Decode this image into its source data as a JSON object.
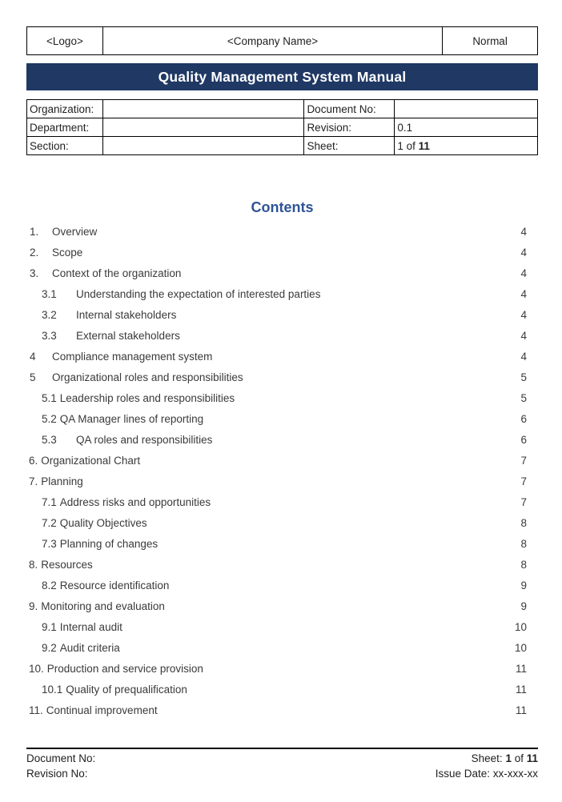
{
  "header": {
    "logo": "<Logo>",
    "company_name": "<Company Name>",
    "status": "Normal"
  },
  "title_banner": {
    "title": "Quality Management System Manual",
    "background_color": "#1f3864",
    "text_color": "#ffffff"
  },
  "info_table": {
    "organization_label": "Organization:",
    "organization_value": "",
    "document_no_label": "Document No:",
    "document_no_value": "",
    "department_label": "Department:",
    "department_value": "",
    "revision_label": "Revision:",
    "revision_value": "0.1",
    "section_label": "Section:",
    "section_value": "",
    "sheet_label": "Sheet:",
    "sheet_value_prefix": "1 of ",
    "sheet_value_total": "11"
  },
  "contents": {
    "heading": "Contents",
    "heading_color": "#2e5496",
    "items": [
      {
        "num": "1.",
        "label": "Overview",
        "page": "4",
        "style": "top-tab"
      },
      {
        "num": "2.",
        "label": "Scope",
        "page": "4",
        "style": "top-tab"
      },
      {
        "num": "3.",
        "label": "Context of the organization",
        "page": "4",
        "style": "top-tab"
      },
      {
        "num": "3.1",
        "label": "Understanding the expectation of interested parties",
        "page": "4",
        "style": "sub-tab"
      },
      {
        "num": "3.2",
        "label": "Internal stakeholders",
        "page": "4",
        "style": "sub-tab"
      },
      {
        "num": "3.3",
        "label": "External stakeholders",
        "page": "4",
        "style": "sub-tab"
      },
      {
        "num": "4",
        "label": "Compliance management system",
        "page": "4",
        "style": "top-tab"
      },
      {
        "num": "5",
        "label": "Organizational roles and responsibilities",
        "page": "5",
        "style": "top-tab"
      },
      {
        "num": "5.1",
        "label": "Leadership roles and responsibilities",
        "page": "5",
        "style": "sub-inline"
      },
      {
        "num": "5.2",
        "label": "QA Manager lines of reporting",
        "page": "6",
        "style": "sub-inline"
      },
      {
        "num": "5.3",
        "label": "QA roles and responsibilities",
        "page": "6",
        "style": "sub-tab"
      },
      {
        "num": "6.",
        "label": "Organizational Chart",
        "page": "7",
        "style": "top-inline"
      },
      {
        "num": "7.",
        "label": "Planning",
        "page": "7",
        "style": "top-inline"
      },
      {
        "num": "7.1",
        "label": "Address risks and opportunities",
        "page": "7",
        "style": "sub-inline"
      },
      {
        "num": "7.2",
        "label": "Quality Objectives",
        "page": "8",
        "style": "sub-inline"
      },
      {
        "num": "7.3",
        "label": "Planning of changes",
        "page": "8",
        "style": "sub-inline"
      },
      {
        "num": "8.",
        "label": "Resources",
        "page": "8",
        "style": "top-inline"
      },
      {
        "num": "8.2",
        "label": "Resource identification",
        "page": "9",
        "style": "sub-inline"
      },
      {
        "num": "9.",
        "label": "Monitoring and evaluation",
        "page": "9",
        "style": "top-inline"
      },
      {
        "num": "9.1",
        "label": "Internal audit",
        "page": "10",
        "style": "sub-inline"
      },
      {
        "num": "9.2",
        "label": "Audit criteria",
        "page": "10",
        "style": "sub-inline"
      },
      {
        "num": "10.",
        "label": "Production and service provision",
        "page": "11",
        "style": "top-inline"
      },
      {
        "num": "10.1",
        "label": "Quality of prequalification",
        "page": "11",
        "style": "sub-inline"
      },
      {
        "num": "11.",
        "label": "Continual improvement",
        "page": "11",
        "style": "top-inline"
      }
    ]
  },
  "footer": {
    "document_no_label": "Document No:",
    "revision_no_label": "Revision No:",
    "sheet_label": "Sheet: ",
    "sheet_current": "1",
    "sheet_of": " of ",
    "sheet_total": "11",
    "issue_date_label": "Issue Date: ",
    "issue_date_value": "xx-xxx-xx"
  }
}
